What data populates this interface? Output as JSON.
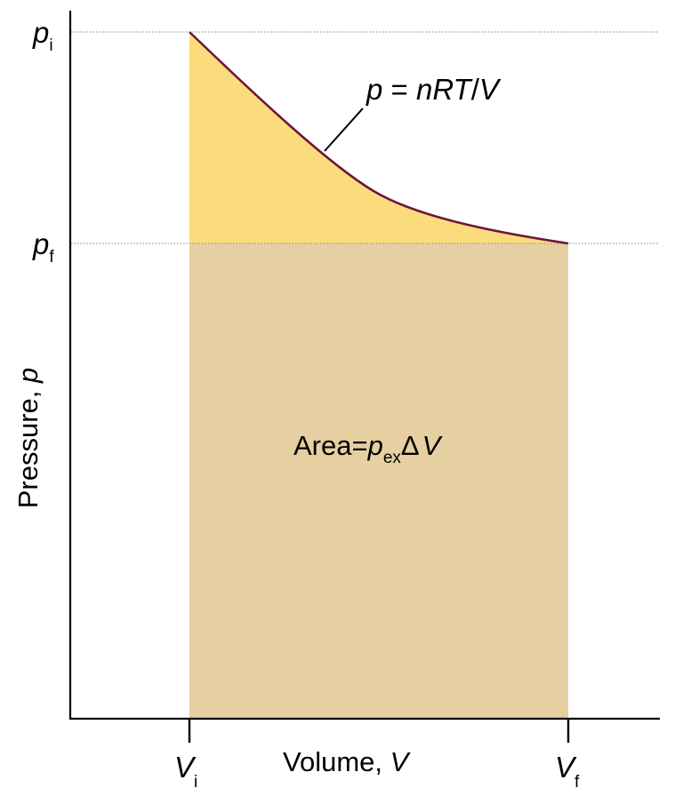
{
  "axes": {
    "y_axis_label_prefix": "Pressure, ",
    "y_axis_label_symbol": "p",
    "x_axis_label_prefix": "Volume, ",
    "x_axis_label_symbol": "V"
  },
  "pressure_marks": {
    "initial": {
      "symbol": "p",
      "subscript": "i"
    },
    "final": {
      "symbol": "p",
      "subscript": "f"
    }
  },
  "volume_marks": {
    "initial": {
      "symbol": "V",
      "subscript": "i"
    },
    "final": {
      "symbol": "V",
      "subscript": "f"
    }
  },
  "curve_label": {
    "p": "p",
    "eq": " = ",
    "nrt": "nRT",
    "slash": "/",
    "v": "V"
  },
  "area_label": {
    "prefix": "Area=",
    "p": "p",
    "sub": "ex",
    "delta": "Δ",
    "v": "V"
  },
  "colors": {
    "curve_area": "#fadc7c",
    "work_area": "#e6cfa0",
    "curve": "#6e1638",
    "axis": "#000000",
    "guide": "#9a9a9a"
  }
}
